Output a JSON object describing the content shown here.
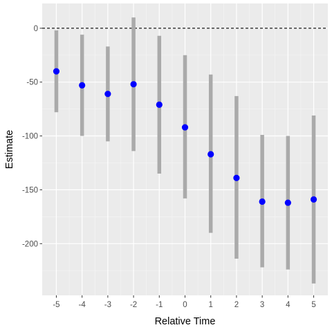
{
  "chart_data": {
    "type": "scatter",
    "title": "",
    "xlabel": "Relative Time",
    "ylabel": "Estimate",
    "x": [
      -5,
      -4,
      -3,
      -2,
      -1,
      0,
      1,
      2,
      3,
      4,
      5
    ],
    "estimate": [
      -40,
      -53,
      -61,
      -52,
      -71,
      -92,
      -117,
      -139,
      -161,
      -162,
      -159
    ],
    "ci_low": [
      -78,
      -100,
      -105,
      -114,
      -135,
      -158,
      -190,
      -214,
      -222,
      -224,
      -237
    ],
    "ci_high": [
      -2,
      -6,
      -17,
      10,
      -7,
      -25,
      -43,
      -63,
      -99,
      -100,
      -81
    ],
    "xticks": [
      -5,
      -4,
      -3,
      -2,
      -1,
      0,
      1,
      2,
      3,
      4,
      5
    ],
    "yticks": [
      0,
      -50,
      -100,
      -150,
      -200
    ],
    "xlim": [
      -5.55,
      5.55
    ],
    "ylim": [
      -248,
      23
    ],
    "reference_line": {
      "y": 0,
      "style": "dashed",
      "color": "#000000"
    },
    "point_color": "#0000ff",
    "errorbar_color": "#aaaaaa",
    "panel_background": "#ebebeb",
    "grid": true,
    "legend": "none"
  }
}
